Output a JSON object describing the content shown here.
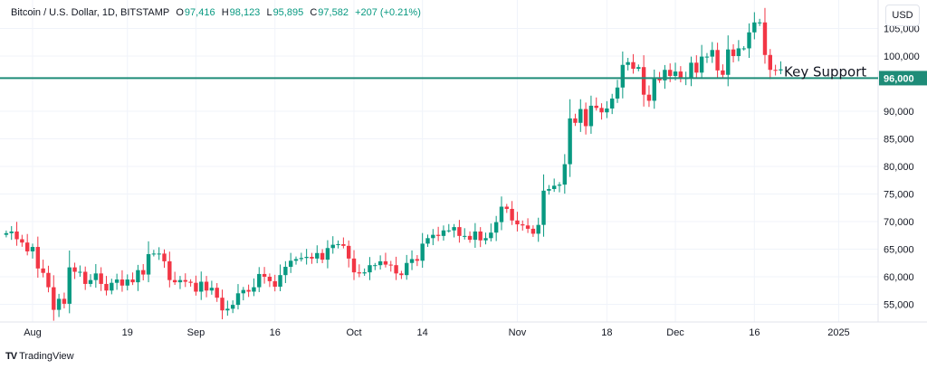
{
  "header": {
    "symbol": "Bitcoin / U.S. Dollar, 1D, BITSTAMP",
    "open_label": "O",
    "open": "97,416",
    "high_label": "H",
    "high": "98,123",
    "low_label": "L",
    "low": "95,895",
    "close_label": "C",
    "close": "97,582",
    "change": "+207 (+0.21%)"
  },
  "currency_button": "USD",
  "branding": "TradingView",
  "colors": {
    "up": "#089981",
    "down": "#f23645",
    "support_line": "#1e8c78",
    "grid": "#f0f3fa"
  },
  "chart_data": {
    "type": "candlestick",
    "title": "Bitcoin / U.S. Dollar, 1D, BITSTAMP",
    "start_date": "2024-07-27",
    "units": "USD (thousands)",
    "close": [
      67.9,
      68.2,
      66.8,
      66.2,
      64.6,
      65.4,
      61.5,
      60.7,
      58.1,
      54.0,
      56.0,
      55.1,
      61.7,
      60.9,
      60.9,
      58.7,
      59.4,
      60.6,
      58.7,
      57.5,
      58.9,
      59.5,
      58.4,
      59.5,
      59.0,
      61.2,
      60.4,
      64.1,
      64.2,
      64.2,
      62.8,
      59.4,
      59.0,
      59.4,
      59.1,
      58.9,
      57.3,
      59.1,
      57.5,
      58.0,
      56.2,
      53.9,
      54.2,
      54.9,
      57.0,
      57.6,
      57.3,
      58.1,
      60.5,
      60.0,
      59.2,
      58.2,
      60.3,
      61.8,
      62.9,
      63.2,
      63.4,
      63.6,
      63.3,
      64.3,
      63.1,
      65.2,
      65.8,
      65.9,
      65.6,
      63.3,
      60.8,
      60.6,
      60.8,
      62.1,
      62.1,
      62.8,
      62.2,
      62.1,
      60.6,
      60.3,
      62.5,
      63.2,
      62.9,
      66.0,
      67.0,
      67.6,
      67.4,
      68.4,
      68.4,
      69.0,
      67.4,
      67.4,
      66.7,
      68.2,
      66.6,
      67.0,
      68.0,
      69.9,
      72.7,
      72.3,
      70.2,
      69.5,
      69.3,
      68.7,
      67.8,
      69.4,
      75.6,
      75.9,
      76.5,
      76.7,
      80.4,
      88.7,
      87.9,
      90.4,
      87.3,
      91.0,
      90.6,
      89.8,
      90.5,
      92.3,
      94.3,
      98.4,
      98.9,
      97.7,
      98.0,
      93.0,
      91.9,
      95.9,
      95.6,
      97.5,
      96.4,
      97.2,
      95.9,
      96.0,
      98.8,
      97.0,
      99.9,
      99.9,
      101.1,
      97.4,
      96.6,
      101.2,
      100.0,
      101.4,
      101.4,
      104.3,
      106.1,
      106.1,
      100.2,
      97.5,
      97.4,
      97.6
    ],
    "first_open": 67.6,
    "y_ticks": [
      "105,000",
      "100,000",
      "90,000",
      "85,000",
      "80,000",
      "75,000",
      "70,000",
      "65,000",
      "60,000",
      "55,000"
    ],
    "y_tick_values": [
      105,
      100,
      90,
      85,
      80,
      75,
      70,
      65,
      60,
      55
    ],
    "x_ticks": [
      "Aug",
      "19",
      "Sep",
      "16",
      "Oct",
      "14",
      "Nov",
      "18",
      "Dec",
      "16",
      "2025"
    ],
    "x_tick_dates": [
      "2024-08-01",
      "2024-08-19",
      "2024-09-01",
      "2024-09-16",
      "2024-10-01",
      "2024-10-14",
      "2024-11-01",
      "2024-11-18",
      "2024-12-01",
      "2024-12-16",
      "2025-01-01"
    ],
    "ylim": [
      52,
      112
    ],
    "annotations": [
      {
        "type": "hline",
        "value": 96,
        "label": "Key Support",
        "price_label": "96,000"
      }
    ]
  }
}
